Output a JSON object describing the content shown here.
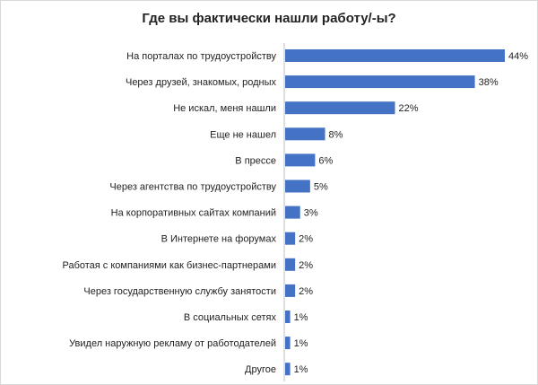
{
  "chart_data": {
    "type": "bar",
    "orientation": "horizontal",
    "title": "Где вы фактически нашли работу/-ы?",
    "categories": [
      "На порталах по трудоустройству",
      "Через друзей, знакомых, родных",
      "Не искал, меня нашли",
      "Еще не нашел",
      "В прессе",
      "Через агентства по трудоустройству",
      "На корпоративных сайтах компаний",
      "В Интернете на форумах",
      "Работая с компаниями как бизнес-партнерами",
      "Через государственную службу занятости",
      "В социальных сетях",
      "Увидел наружную рекламу от работодателей",
      "Другое"
    ],
    "values": [
      44,
      38,
      22,
      8,
      6,
      5,
      3,
      2,
      2,
      2,
      1,
      1,
      1
    ],
    "value_labels": [
      "44%",
      "38%",
      "22%",
      "8%",
      "6%",
      "5%",
      "3%",
      "2%",
      "2%",
      "2%",
      "1%",
      "1%",
      "1%"
    ],
    "xlim": [
      0,
      44
    ],
    "grid": false,
    "legend": "none",
    "bar_color": "#4472c4"
  }
}
